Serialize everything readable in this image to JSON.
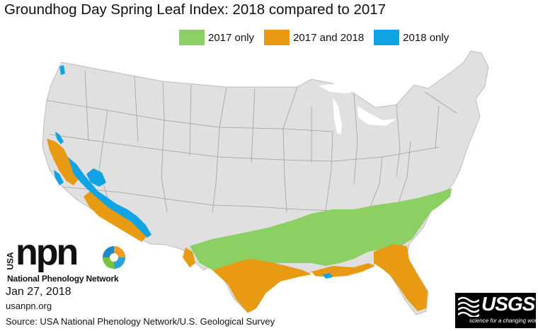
{
  "title": "Groundhog Day Spring Leaf Index: 2018 compared to 2017",
  "legend": [
    {
      "label": "2017 only",
      "color": "#8ccf63"
    },
    {
      "label": "2017 and 2018",
      "color": "#e79a12"
    },
    {
      "label": "2018 only",
      "color": "#11a4e4"
    }
  ],
  "colors": {
    "land": "#e0e0e0",
    "state_border": "#9e9e9e",
    "only_2017": "#8ccf63",
    "both": "#e79a12",
    "only_2018": "#11a4e4"
  },
  "branding": {
    "npn_side_text": "USA",
    "npn_word": "npn",
    "npn_full_name": "National Phenology Network",
    "date": "Jan 27, 2018",
    "url": "usanpn.org",
    "source": "Source: USA National Phenology Network/U.S. Geological Survey",
    "usgs_word": "USGS",
    "usgs_tagline": "science for a changing world"
  }
}
